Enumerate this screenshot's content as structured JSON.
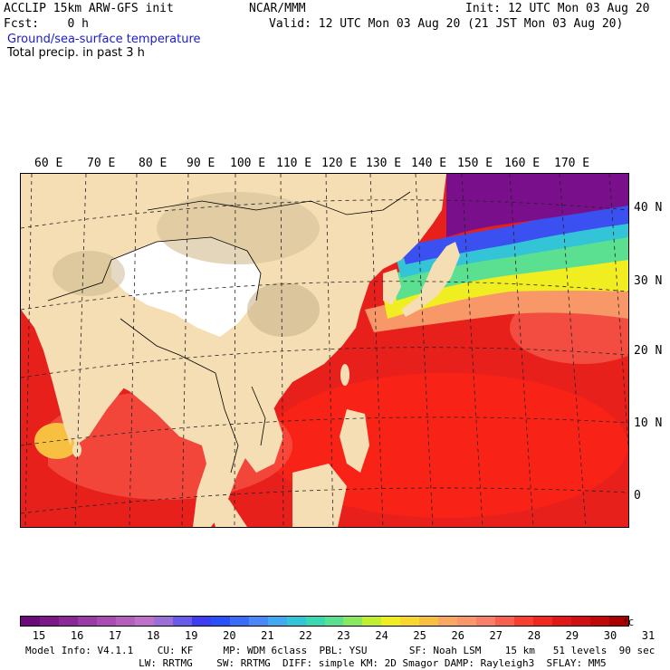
{
  "header": {
    "model_title": "ACCLIP 15km ARW-GFS init",
    "org": "NCAR/MMM",
    "init": "Init: 12 UTC Mon 03 Aug 20",
    "fcst": "Fcst:    0 h",
    "valid": "Valid: 12 UTC Mon 03 Aug 20 (21 JST Mon 03 Aug 20)",
    "field1": "Ground/sea-surface temperature",
    "field2": "Total precip. in past 3 h"
  },
  "map": {
    "lon_labels": [
      "60 E",
      "70 E",
      "80 E",
      "90 E",
      "100 E",
      "110 E",
      "120 E",
      "130 E",
      "140 E",
      "150 E",
      "160 E",
      "170 E"
    ],
    "lat_labels": [
      "40 N",
      "30 N",
      "20 N",
      "10 N",
      "0"
    ],
    "colors": {
      "land": "#f5deb3",
      "plateau": "#ffffff",
      "mountain": "#c8b48c",
      "sst_warm": "#e8201c",
      "sst_hot": "#ff2010",
      "sst_mid": "#ff6040",
      "sst_cool": "#f8e020",
      "sst_cold": "#3060ff",
      "sst_coldest": "#7a0f8c"
    }
  },
  "colorbar": {
    "colors": [
      "#6b0a7a",
      "#7a1888",
      "#8a2898",
      "#9a3aa6",
      "#a84cb2",
      "#b45ebe",
      "#bf70c8",
      "#9a70d8",
      "#6a5ae8",
      "#3e3ef0",
      "#2a50f8",
      "#3a6cf8",
      "#4a88f8",
      "#42a8f0",
      "#34c4d8",
      "#3ad8b0",
      "#5ae090",
      "#8ae860",
      "#c0ee30",
      "#f0ee20",
      "#f8d830",
      "#f8c040",
      "#f8a860",
      "#f89868",
      "#f88068",
      "#f86050",
      "#f84030",
      "#f02820",
      "#e01818",
      "#d01010",
      "#c00808",
      "#a80000"
    ],
    "labels": [
      "15",
      "16",
      "17",
      "18",
      "19",
      "20",
      "21",
      "22",
      "23",
      "24",
      "25",
      "26",
      "27",
      "28",
      "29",
      "30",
      "31"
    ],
    "unit": "°C"
  },
  "footer": {
    "line1": "Model Info: V4.1.1    CU: KF     MP: WDM 6class  PBL: YSU       SF: Noah LSM    15 km   51 levels  90 sec",
    "line2": "     LW: RRTMG    SW: RRTMG  DIFF: simple KM: 2D Smagor DAMP: Rayleigh3  SFLAY: MM5"
  }
}
